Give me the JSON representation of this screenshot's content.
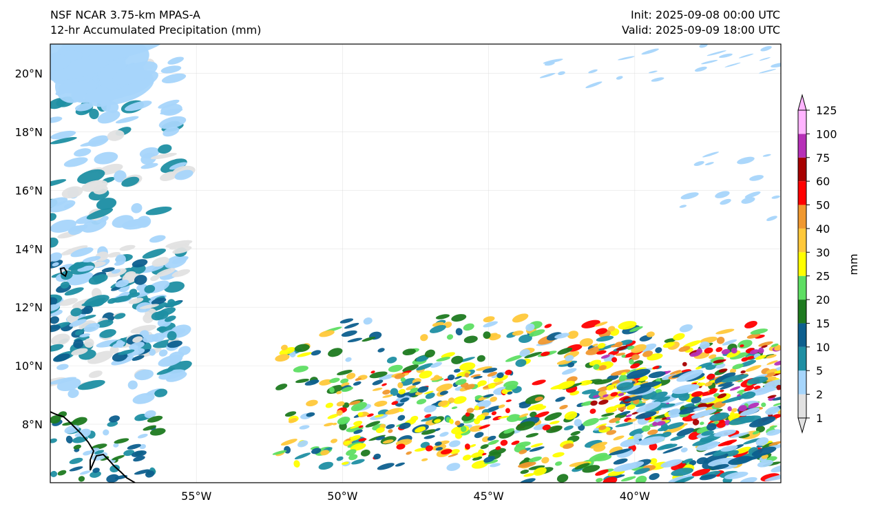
{
  "header": {
    "model": "NSF NCAR 3.75-km MPAS-A",
    "field": "12-hr Accumulated Precipitation (mm)",
    "init": "Init: 2025-09-08 00:00 UTC",
    "valid": "Valid: 2025-09-09 18:00 UTC"
  },
  "map": {
    "lat_labels": [
      {
        "lat": 20,
        "label": "20°N"
      },
      {
        "lat": 18,
        "label": "18°N"
      },
      {
        "lat": 16,
        "label": "16°N"
      },
      {
        "lat": 14,
        "label": "14°N"
      },
      {
        "lat": 12,
        "label": "12°N"
      },
      {
        "lat": 10,
        "label": "10°N"
      },
      {
        "lat": 8,
        "label": "8°N"
      }
    ],
    "lon_labels": [
      {
        "lon": -55,
        "label": "55°W"
      },
      {
        "lon": -50,
        "label": "50°W"
      },
      {
        "lon": -45,
        "label": "45°W"
      },
      {
        "lon": -40,
        "label": "40°W"
      }
    ],
    "lon_range": [
      -60,
      -35
    ],
    "lat_range": [
      6,
      21
    ],
    "gridlines": true
  },
  "colorbar": {
    "unit_label": "mm",
    "extend": "both",
    "levels": [
      1,
      2,
      5,
      10,
      15,
      20,
      25,
      30,
      40,
      50,
      60,
      75,
      100,
      125
    ],
    "tick_labels": [
      "1",
      "2",
      "5",
      "10",
      "15",
      "20",
      "25",
      "30",
      "40",
      "50",
      "60",
      "75",
      "100",
      "125"
    ],
    "colors": [
      "#e1e1e1",
      "#a6d5fb",
      "#1f8fa3",
      "#0d5f8e",
      "#1e7a20",
      "#5ede63",
      "#ffff00",
      "#ffc83a",
      "#f0982f",
      "#ff0000",
      "#a60000",
      "#b630b7",
      "#ffb4ff"
    ]
  }
}
